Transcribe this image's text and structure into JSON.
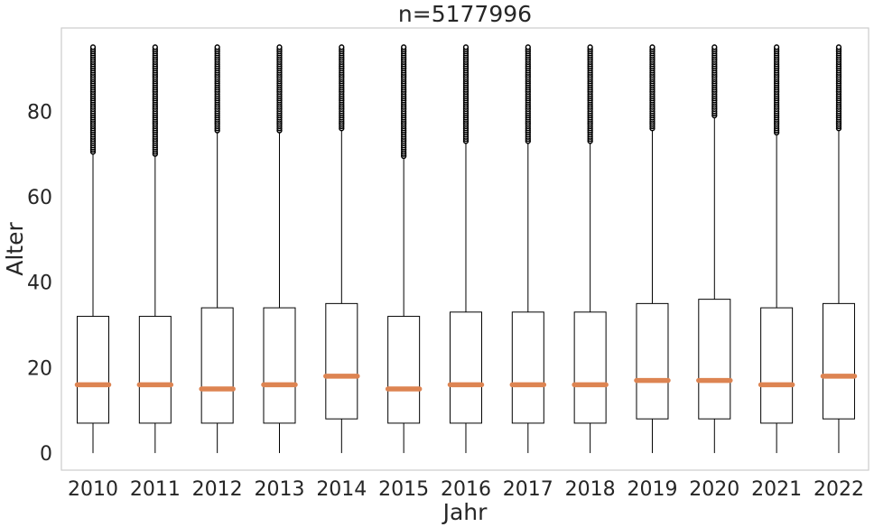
{
  "chart_data": {
    "type": "boxplot",
    "title": "n=5177996",
    "xlabel": "Jahr",
    "ylabel": "Alter",
    "ylim": [
      -4,
      99.5
    ],
    "yticks": [
      0,
      20,
      40,
      60,
      80
    ],
    "grid": false,
    "categories": [
      "2010",
      "2011",
      "2012",
      "2013",
      "2014",
      "2015",
      "2016",
      "2017",
      "2018",
      "2019",
      "2020",
      "2021",
      "2022"
    ],
    "boxes": [
      {
        "whislo": 0,
        "q1": 7,
        "med": 16,
        "q3": 32,
        "whishi": 70,
        "fliers_min": 70.5,
        "fliers_max": 95
      },
      {
        "whislo": 0,
        "q1": 7,
        "med": 16,
        "q3": 32,
        "whishi": 69.5,
        "fliers_min": 70,
        "fliers_max": 95
      },
      {
        "whislo": 0,
        "q1": 7,
        "med": 15,
        "q3": 34,
        "whishi": 75,
        "fliers_min": 75.5,
        "fliers_max": 95
      },
      {
        "whislo": 0,
        "q1": 7,
        "med": 16,
        "q3": 34,
        "whishi": 75,
        "fliers_min": 75.5,
        "fliers_max": 95
      },
      {
        "whislo": 0,
        "q1": 8,
        "med": 18,
        "q3": 35,
        "whishi": 75.5,
        "fliers_min": 76,
        "fliers_max": 95
      },
      {
        "whislo": 0,
        "q1": 7,
        "med": 15,
        "q3": 32,
        "whishi": 69,
        "fliers_min": 69.5,
        "fliers_max": 95
      },
      {
        "whislo": 0,
        "q1": 7,
        "med": 16,
        "q3": 33,
        "whishi": 72.5,
        "fliers_min": 73,
        "fliers_max": 95
      },
      {
        "whislo": 0,
        "q1": 7,
        "med": 16,
        "q3": 33,
        "whishi": 72.5,
        "fliers_min": 73,
        "fliers_max": 95
      },
      {
        "whislo": 0,
        "q1": 7,
        "med": 16,
        "q3": 33,
        "whishi": 72.5,
        "fliers_min": 73,
        "fliers_max": 95
      },
      {
        "whislo": 0,
        "q1": 8,
        "med": 17,
        "q3": 35,
        "whishi": 75.5,
        "fliers_min": 76,
        "fliers_max": 95
      },
      {
        "whislo": 0,
        "q1": 8,
        "med": 17,
        "q3": 36,
        "whishi": 78.5,
        "fliers_min": 79,
        "fliers_max": 95
      },
      {
        "whislo": 0,
        "q1": 7,
        "med": 16,
        "q3": 34,
        "whishi": 74.5,
        "fliers_min": 75,
        "fliers_max": 95
      },
      {
        "whislo": 0,
        "q1": 8,
        "med": 18,
        "q3": 35,
        "whishi": 75.5,
        "fliers_min": 76,
        "fliers_max": 95
      }
    ],
    "colors": {
      "median": "#dd8452",
      "box": "#000000",
      "frame": "#cccccc",
      "background": "#ffffff"
    }
  }
}
